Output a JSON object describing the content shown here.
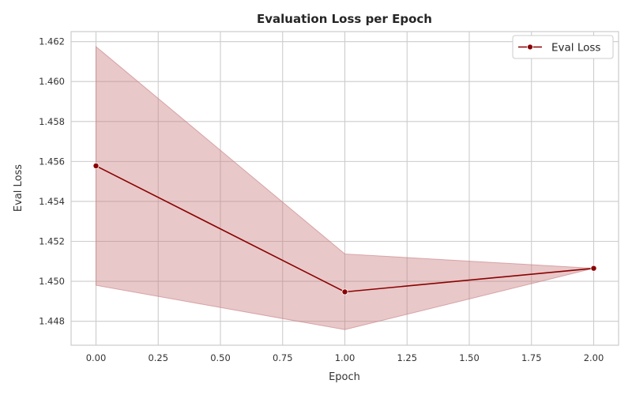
{
  "chart_data": {
    "type": "line",
    "title": "Evaluation Loss per Epoch",
    "xlabel": "Epoch",
    "ylabel": "Eval Loss",
    "xlim": [
      -0.1,
      2.1
    ],
    "ylim": [
      1.4468,
      1.4625
    ],
    "x_ticks": [
      "0.00",
      "0.25",
      "0.50",
      "0.75",
      "1.00",
      "1.25",
      "1.50",
      "1.75",
      "2.00"
    ],
    "y_ticks": [
      "1.448",
      "1.450",
      "1.452",
      "1.454",
      "1.456",
      "1.458",
      "1.460",
      "1.462"
    ],
    "grid": true,
    "legend_position": "top-right",
    "series": [
      {
        "name": "Eval Loss",
        "color": "#8b0000",
        "band_color": "#c87b7e",
        "marker": "circle",
        "points": [
          {
            "x": 0.0,
            "y": 1.45578,
            "lower": 1.4498,
            "upper": 1.46175
          },
          {
            "x": 1.0,
            "y": 1.44947,
            "lower": 1.44758,
            "upper": 1.45137
          },
          {
            "x": 2.0,
            "y": 1.45065,
            "lower": 1.45065,
            "upper": 1.45065
          }
        ]
      }
    ]
  }
}
